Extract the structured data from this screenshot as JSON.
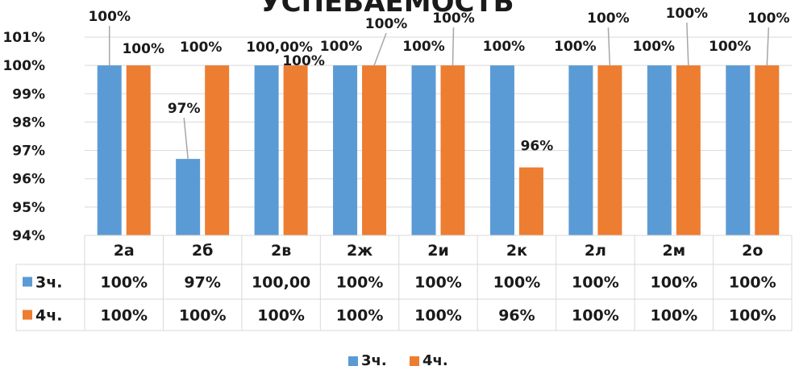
{
  "chart_data": {
    "type": "bar",
    "title": "УСПЕВАЕМОСТЬ",
    "categories": [
      "2а",
      "2б",
      "2в",
      "2ж",
      "2и",
      "2к",
      "2л",
      "2м",
      "2о"
    ],
    "series": [
      {
        "name": "3ч.",
        "values": [
          100,
          96.7,
          100,
          100,
          100,
          100,
          100,
          100,
          100
        ],
        "labels": [
          "100%",
          "97%",
          "100,00%",
          "100%",
          "100%",
          "100%",
          "100%",
          "100%",
          "100%"
        ],
        "table_values": [
          "100%",
          "97%",
          "100,00",
          "100%",
          "100%",
          "100%",
          "100%",
          "100%",
          "100%"
        ],
        "color": "#5b9bd5"
      },
      {
        "name": "4ч.",
        "values": [
          100,
          100,
          100,
          100,
          100,
          96.4,
          100,
          100,
          100
        ],
        "labels": [
          "100%",
          "100%",
          "100%",
          "100%",
          "100%",
          "96%",
          "100%",
          "100%",
          "100%"
        ],
        "table_values": [
          "100%",
          "100%",
          "100%",
          "100%",
          "100%",
          "96%",
          "100%",
          "100%",
          "100%"
        ],
        "color": "#ed7d31"
      }
    ],
    "y_ticks": [
      "94%",
      "95%",
      "96%",
      "97%",
      "98%",
      "99%",
      "100%",
      "101%"
    ],
    "ylim": [
      94,
      101
    ],
    "grid": true,
    "legend": "bottom",
    "data_table": true
  }
}
